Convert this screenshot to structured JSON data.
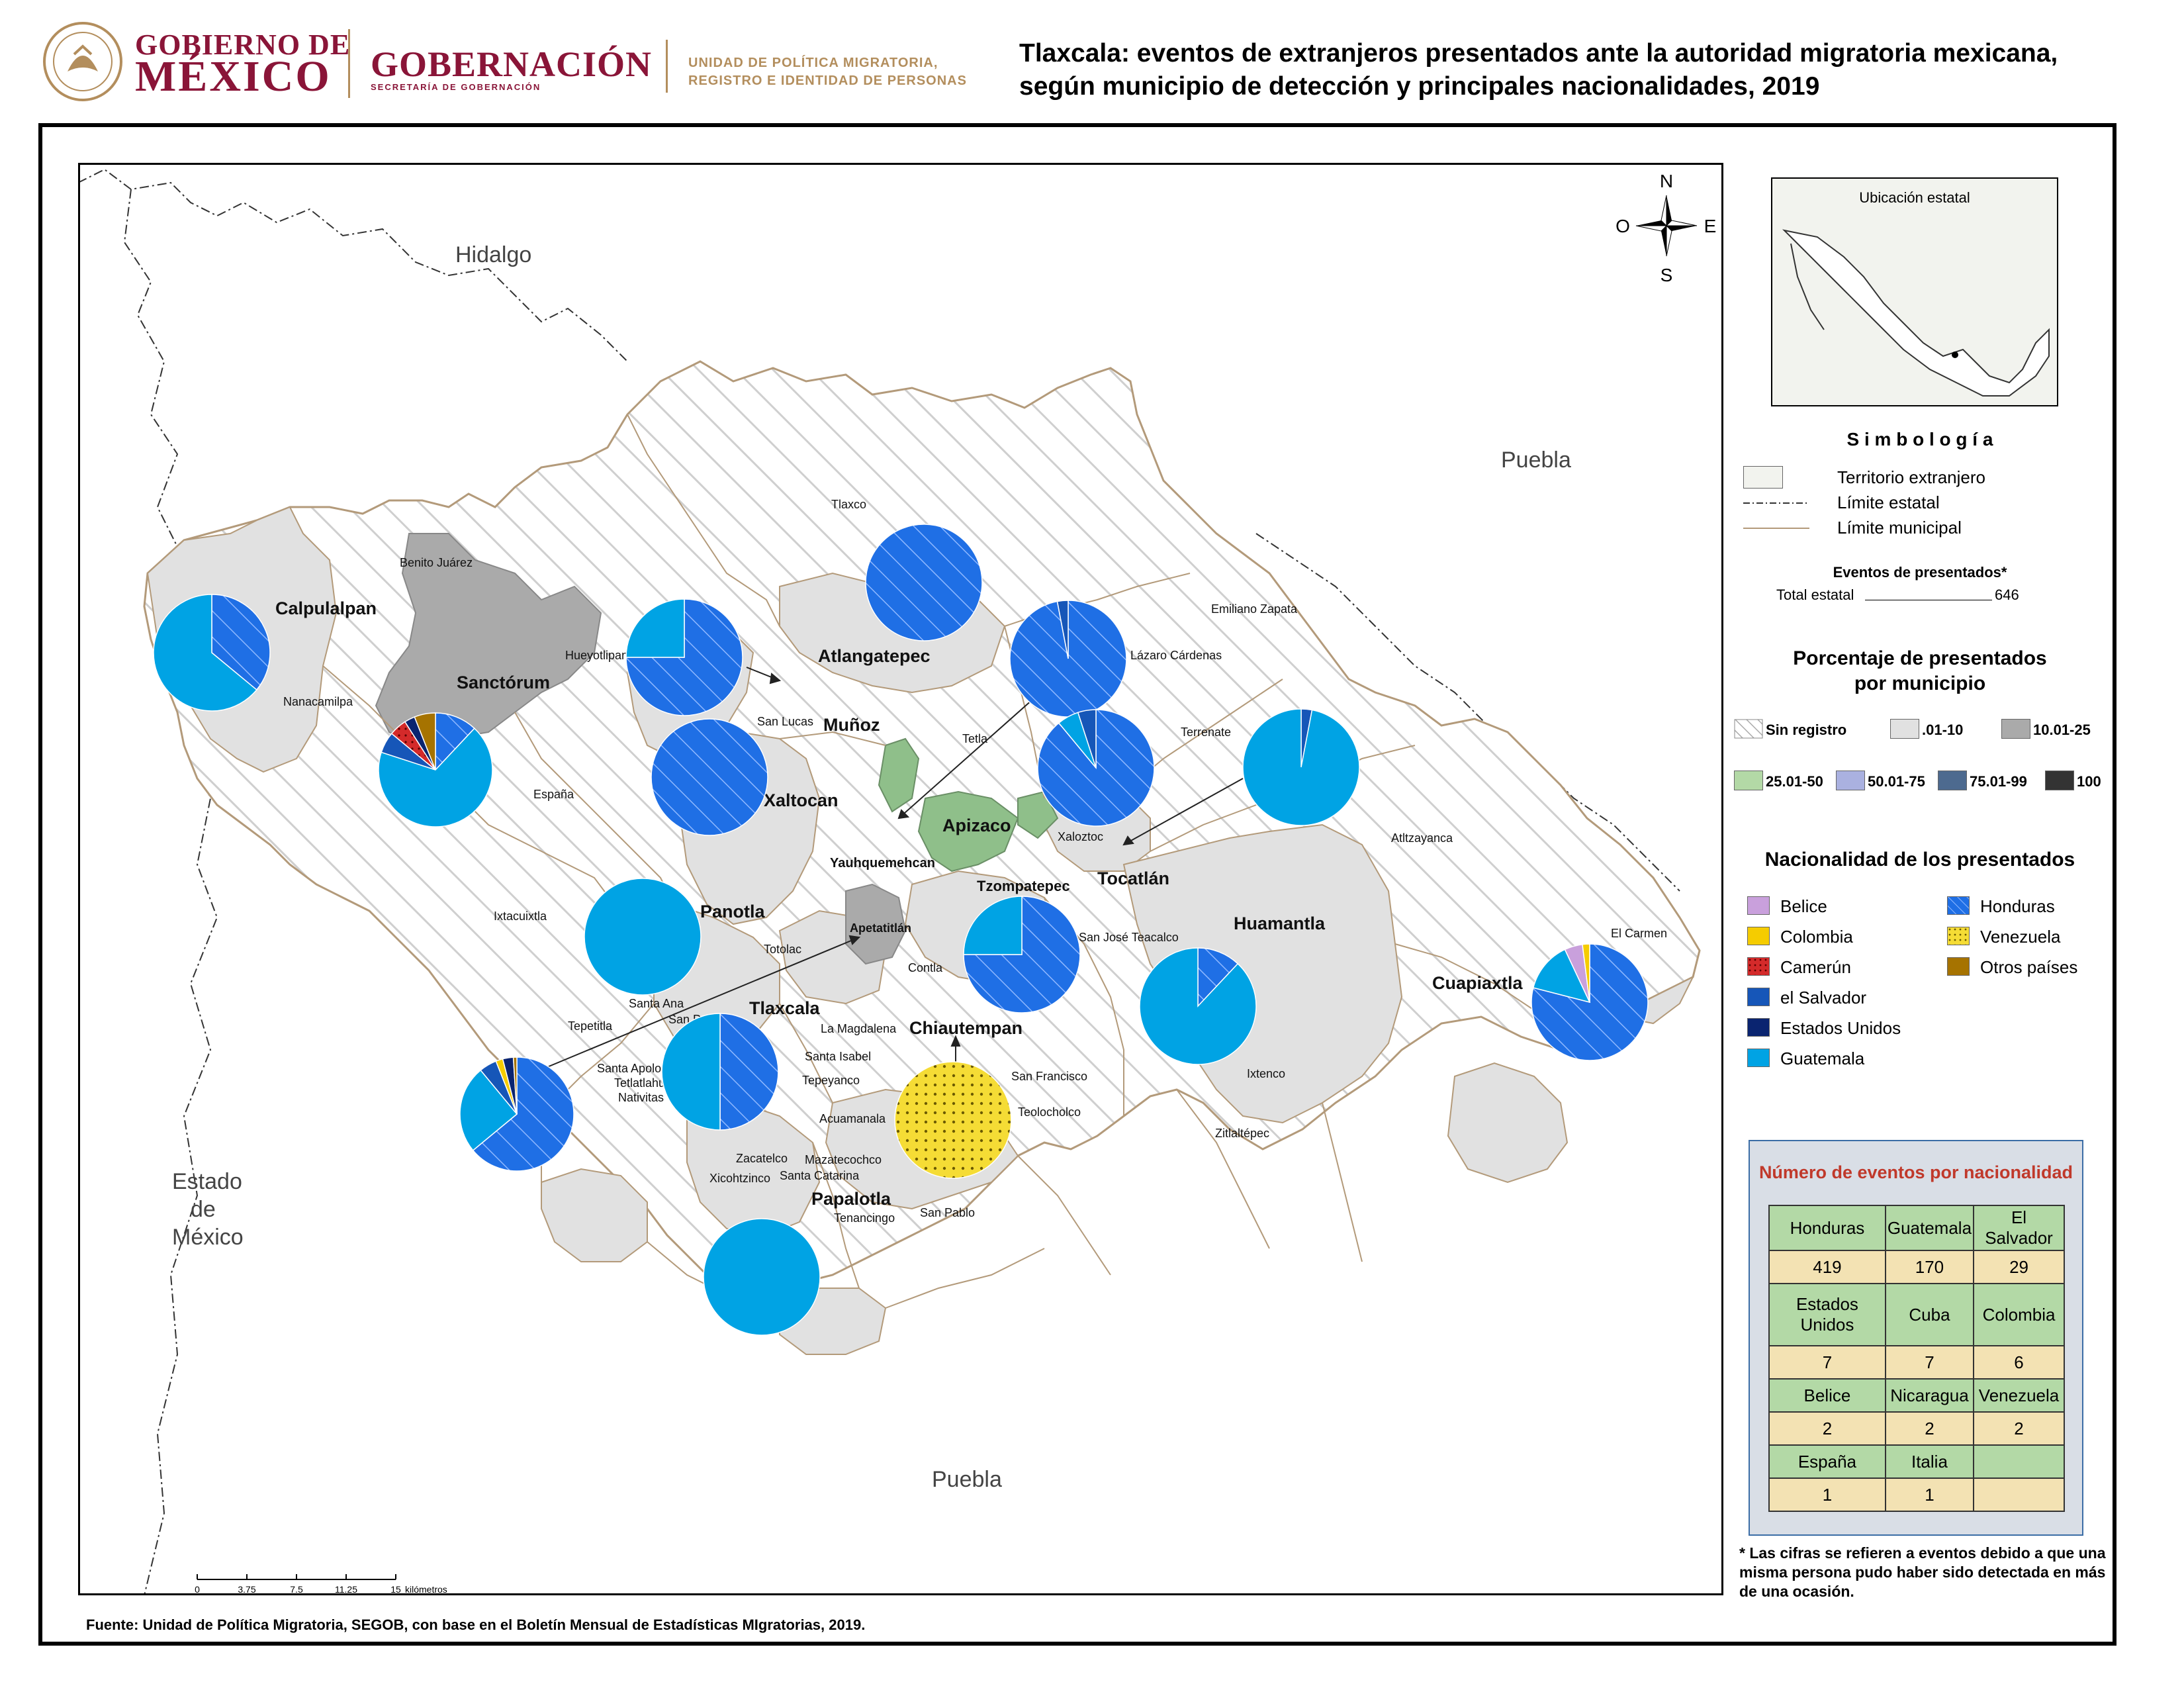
{
  "header": {
    "gob_line1": "GOBIERNO DE",
    "gob_line2": "MÉXICO",
    "dependencia": "GOBERNACIÓN",
    "dependencia_sub": "SECRETARÍA DE GOBERNACIÓN",
    "unidad_line1": "UNIDAD DE POLÍTICA MIGRATORIA,",
    "unidad_line2": "REGISTRO E IDENTIDAD DE PERSONAS"
  },
  "title": "Tlaxcala: eventos de extranjeros presentados ante la autoridad migratoria mexicana, según municipio de detección y principales nacionalidades, 2019",
  "map": {
    "neighbors": {
      "hidalgo": "Hidalgo",
      "puebla_east": "Puebla",
      "puebla_south": "Puebla",
      "edomex_1": "Estado",
      "edomex_2": "de",
      "edomex_3": "México"
    },
    "compass": {
      "n": "N",
      "s": "S",
      "e": "E",
      "w": "O"
    },
    "municipios_destacados": [
      "Calpulalpan",
      "Sanctórum",
      "Atlangatepec",
      "Muñoz",
      "Xaltocan",
      "Apizaco",
      "Yauhquemehcan",
      "Tzompatepec",
      "Tocatlán",
      "Huamantla",
      "Panotla",
      "Apetatitlán",
      "Tlaxcala",
      "Chiautempan",
      "Cuapiaxtla",
      "Papalotla"
    ],
    "municipios": [
      "Tlaxco",
      "Benito Juárez",
      "Hueyotlipan",
      "Emiliano Zapata",
      "Lázaro Cárdenas",
      "Nanacamilpa",
      "San Lucas",
      "Tetla",
      "Terrenate",
      "España",
      "Xaloztoc",
      "Atltzayanca",
      "Ixtacuixtla",
      "Totolac",
      "Contla",
      "San José Teacalco",
      "El Carmen",
      "Santa Ana",
      "San Damián",
      "Tepetitla",
      "La Magdalena",
      "Santa Apolonia",
      "Santa Isabel",
      "Tetlatlahuca",
      "Tepeyanco",
      "San Francisco",
      "Ixtenco",
      "Nativitas",
      "Acuamanala",
      "Teolocholco",
      "Zitlaltépec",
      "Zacatelco",
      "Mazatecochco",
      "Santa Catarina",
      "Xicohtzinco",
      "Tenancingo",
      "San Pablo"
    ],
    "scale": {
      "ticks": [
        "0",
        "3.75",
        "7.5",
        "11.25",
        "15"
      ],
      "unit": "kilómetros"
    }
  },
  "legend": {
    "inset_title": "Ubicación estatal",
    "simbologia_title": "S i m b o l o g í a",
    "simbologia": [
      {
        "label": "Territorio extranjero"
      },
      {
        "label": "Límite estatal"
      },
      {
        "label": "Límite municipal"
      }
    ],
    "eventos_title": "Eventos de presentados*",
    "total_label": "Total estatal",
    "total_value": "646",
    "porcentaje_title_1": "Porcentaje de presentados",
    "porcentaje_title_2": "por municipio",
    "classes": [
      {
        "label": "Sin registro",
        "color": "#ffffff"
      },
      {
        "label": ".01-10",
        "color": "#e1e1e1"
      },
      {
        "label": "10.01-25",
        "color": "#aaaaaa"
      },
      {
        "label": "25.01-50",
        "color": "#b3d9a6"
      },
      {
        "label": "50.01-75",
        "color": "#aab1e0"
      },
      {
        "label": "75.01-99",
        "color": "#4d6a8f"
      },
      {
        "label": "100",
        "color": "#333333"
      }
    ],
    "nacionalidad_title": "Nacionalidad de los presentados",
    "nacionalidades": [
      {
        "label": "Belice",
        "color": "#c9a0dc"
      },
      {
        "label": "Colombia",
        "color": "#f5cc00"
      },
      {
        "label": "Camerún",
        "color": "#d42a2a"
      },
      {
        "label": "el Salvador",
        "color": "#1656b8"
      },
      {
        "label": "Estados Unidos",
        "color": "#0a2470"
      },
      {
        "label": "Guatemala",
        "color": "#00a3e4"
      },
      {
        "label": "Honduras",
        "color": "#1f6fe5"
      },
      {
        "label": "Venezuela",
        "color": "#f5dc35"
      },
      {
        "label": "Otros países",
        "color": "#a67300"
      }
    ]
  },
  "table": {
    "title": "Número de eventos por nacionalidad",
    "rows": [
      [
        {
          "n": "Honduras",
          "v": "419"
        },
        {
          "n": "Guatemala",
          "v": "170"
        },
        {
          "n": "El Salvador",
          "v": "29"
        }
      ],
      [
        {
          "n": "Estados Unidos",
          "v": "7"
        },
        {
          "n": "Cuba",
          "v": "7"
        },
        {
          "n": "Colombia",
          "v": "6"
        }
      ],
      [
        {
          "n": "Belice",
          "v": "2"
        },
        {
          "n": "Nicaragua",
          "v": "2"
        },
        {
          "n": "Venezuela",
          "v": "2"
        }
      ],
      [
        {
          "n": "España",
          "v": "1"
        },
        {
          "n": "Italia",
          "v": "1"
        },
        {
          "n": "",
          "v": ""
        }
      ]
    ]
  },
  "footnote": "* Las cifras se refieren a eventos debido a que una misma persona pudo haber sido detectada en más de una ocasión.",
  "source": "Fuente: Unidad de Política Migratoria, SEGOB, con base en el Boletín Mensual de Estadísticas MIgratorias, 2019.",
  "pies": [
    {
      "municipio": "Calpulalpan",
      "slices": [
        {
          "nat": "Honduras",
          "pct": 36
        },
        {
          "nat": "Guatemala",
          "pct": 64
        }
      ]
    },
    {
      "municipio": "Sanctórum",
      "slices": [
        {
          "nat": "Honduras",
          "pct": 12
        },
        {
          "nat": "Guatemala",
          "pct": 68
        },
        {
          "nat": "el Salvador",
          "pct": 6
        },
        {
          "nat": "Camerún",
          "pct": 5
        },
        {
          "nat": "Estados Unidos",
          "pct": 3
        },
        {
          "nat": "Otros países",
          "pct": 6
        }
      ]
    },
    {
      "municipio": "Hueyotlipan",
      "slices": [
        {
          "nat": "Honduras",
          "pct": 75
        },
        {
          "nat": "Guatemala",
          "pct": 25
        }
      ]
    },
    {
      "municipio": "Atlangatepec",
      "slices": [
        {
          "nat": "Honduras",
          "pct": 100
        }
      ]
    },
    {
      "municipio": "Xaltocan",
      "slices": [
        {
          "nat": "Honduras",
          "pct": 100
        }
      ]
    },
    {
      "municipio": "Lázaro Cárdenas",
      "slices": [
        {
          "nat": "Honduras",
          "pct": 97
        },
        {
          "nat": "el Salvador",
          "pct": 3
        }
      ]
    },
    {
      "municipio": "Xaloztoc",
      "slices": [
        {
          "nat": "Honduras",
          "pct": 89
        },
        {
          "nat": "Guatemala",
          "pct": 6
        },
        {
          "nat": "el Salvador",
          "pct": 5
        }
      ]
    },
    {
      "municipio": "Tocatlán",
      "slices": [
        {
          "nat": "el Salvador",
          "pct": 3
        },
        {
          "nat": "Guatemala",
          "pct": 97
        }
      ]
    },
    {
      "municipio": "Panotla",
      "slices": [
        {
          "nat": "Guatemala",
          "pct": 100
        }
      ]
    },
    {
      "municipio": "Tzompatepec",
      "slices": [
        {
          "nat": "Honduras",
          "pct": 75
        },
        {
          "nat": "Guatemala",
          "pct": 25
        }
      ]
    },
    {
      "municipio": "Huamantla",
      "slices": [
        {
          "nat": "Honduras",
          "pct": 12
        },
        {
          "nat": "Guatemala",
          "pct": 88
        }
      ]
    },
    {
      "municipio": "Cuapiaxtla",
      "slices": [
        {
          "nat": "Honduras",
          "pct": 79
        },
        {
          "nat": "Guatemala",
          "pct": 14
        },
        {
          "nat": "Belice",
          "pct": 5
        },
        {
          "nat": "Colombia",
          "pct": 2
        }
      ]
    },
    {
      "municipio": "Apetatitlán",
      "slices": [
        {
          "nat": "Honduras",
          "pct": 64
        },
        {
          "nat": "Guatemala",
          "pct": 25
        },
        {
          "nat": "el Salvador",
          "pct": 5
        },
        {
          "nat": "Colombia",
          "pct": 2
        },
        {
          "nat": "Estados Unidos",
          "pct": 3
        },
        {
          "nat": "Otros países",
          "pct": 1
        }
      ]
    },
    {
      "municipio": "Tlaxcala",
      "slices": [
        {
          "nat": "Honduras",
          "pct": 50
        },
        {
          "nat": "Guatemala",
          "pct": 50
        }
      ]
    },
    {
      "municipio": "Chiautempan",
      "slices": [
        {
          "nat": "Venezuela",
          "pct": 100
        }
      ]
    },
    {
      "municipio": "Papalotla",
      "slices": [
        {
          "nat": "Guatemala",
          "pct": 100
        }
      ]
    }
  ]
}
